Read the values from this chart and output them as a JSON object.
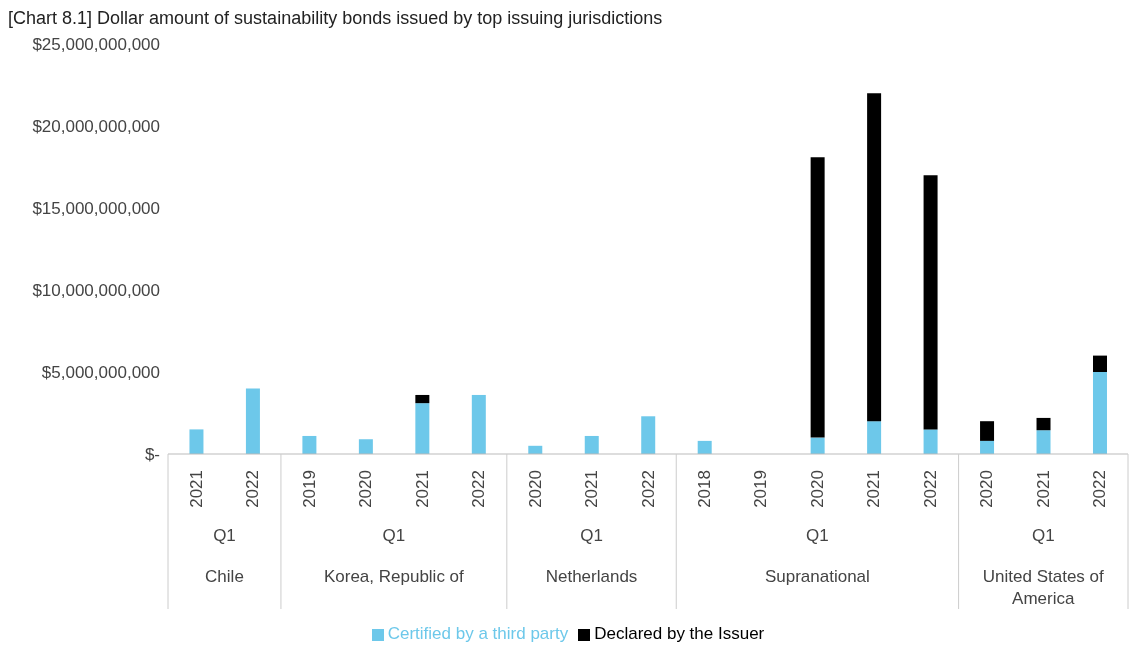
{
  "chart_data": {
    "type": "bar",
    "title": "[Chart 8.1] Dollar amount of sustainability bonds issued by top issuing jurisdictions",
    "categories": [
      "2021",
      "2022",
      "2019",
      "2020",
      "2021",
      "2022",
      "2020",
      "2021",
      "2022",
      "2018",
      "2019",
      "2020",
      "2021",
      "2022",
      "2020",
      "2021",
      "2022"
    ],
    "annotations": [
      "Q1",
      "Chile",
      "Q1",
      "Korea, Republic of",
      "Q1",
      "Netherlands",
      "Q1",
      "Supranational",
      "Q1",
      "United States of America"
    ],
    "stacked": true,
    "series": [
      {
        "name": "Certified by a third party",
        "color": "#6dc8ea",
        "values": [
          1500000000,
          4000000000,
          1100000000,
          900000000,
          3100000000,
          3600000000,
          500000000,
          1100000000,
          2300000000,
          800000000,
          0,
          1000000000,
          2000000000,
          1500000000,
          800000000,
          1450000000,
          5000000000
        ]
      },
      {
        "name": "Declared by the Issuer",
        "color": "#000000",
        "values": [
          0,
          0,
          0,
          0,
          500000000,
          0,
          0,
          0,
          0,
          0,
          0,
          17100000000,
          20000000000,
          15500000000,
          1200000000,
          750000000,
          1000000000
        ]
      }
    ],
    "ylim": [
      0,
      25000000000
    ],
    "yticks": [
      {
        "value": 0,
        "label": "$-"
      },
      {
        "value": 5000000000,
        "label": "$5,000,000,000"
      },
      {
        "value": 10000000000,
        "label": "$10,000,000,000"
      },
      {
        "value": 15000000000,
        "label": "$15,000,000,000"
      },
      {
        "value": 20000000000,
        "label": "$20,000,000,000"
      },
      {
        "value": 25000000000,
        "label": "$25,000,000,000"
      }
    ],
    "grid": false,
    "legend": "bottom"
  }
}
